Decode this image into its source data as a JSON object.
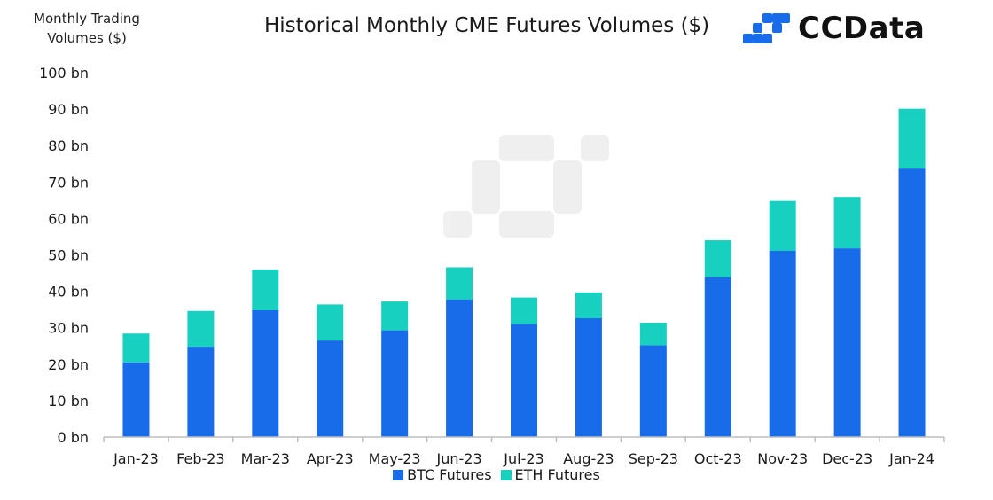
{
  "header": {
    "ylabel_line1": "Monthly Trading",
    "ylabel_line2": "Volumes ($)",
    "title": "Historical Monthly CME Futures Volumes ($)",
    "brand": "CCData"
  },
  "colors": {
    "btc": "#186ce9",
    "eth": "#17d0c0",
    "axis": "#bdbdbd"
  },
  "chart_data": {
    "type": "bar",
    "stacked": true,
    "categories": [
      "Jan-23",
      "Feb-23",
      "Mar-23",
      "Apr-23",
      "May-23",
      "Jun-23",
      "Jul-23",
      "Aug-23",
      "Sep-23",
      "Oct-23",
      "Nov-23",
      "Dec-23",
      "Jan-24"
    ],
    "series": [
      {
        "name": "BTC Futures",
        "values": [
          20.5,
          24.8,
          34.8,
          26.5,
          29.3,
          37.8,
          31.0,
          32.6,
          25.2,
          43.9,
          51.1,
          51.8,
          73.7
        ]
      },
      {
        "name": "ETH Futures",
        "values": [
          7.9,
          9.8,
          11.2,
          9.9,
          7.9,
          8.8,
          7.3,
          7.1,
          6.2,
          10.1,
          13.7,
          14.1,
          16.4
        ]
      }
    ],
    "yticks": [
      "0 bn",
      "10 bn",
      "20 bn",
      "30 bn",
      "40 bn",
      "50 bn",
      "60 bn",
      "70 bn",
      "80 bn",
      "90 bn",
      "100 bn"
    ],
    "ylim": [
      0,
      100
    ],
    "grid": false,
    "legend_position": "bottom"
  }
}
